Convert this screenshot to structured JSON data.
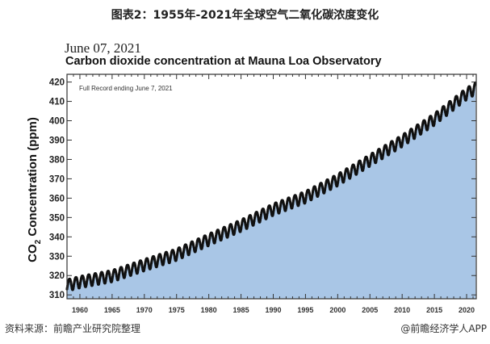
{
  "title": "图表2：1955年-2021年全球空气二氧化碳浓度变化",
  "source": "资料来源：前瞻产业研究院整理",
  "credit": "@前瞻经济学人APP",
  "chart_data": {
    "type": "area",
    "date_label": "June 07, 2021",
    "title": "Carbon dioxide concentration at Mauna Loa Observatory",
    "annotation": "Full Record ending June 7, 2021",
    "ylabel": "CO2 Concentration (ppm)",
    "xlabel": "",
    "xlim": [
      1958,
      2021.5
    ],
    "ylim": [
      308,
      424
    ],
    "yticks": [
      310,
      320,
      330,
      340,
      350,
      360,
      370,
      380,
      390,
      400,
      410,
      420
    ],
    "xticks": [
      1960,
      1965,
      1970,
      1975,
      1980,
      1985,
      1990,
      1995,
      2000,
      2005,
      2010,
      2015,
      2020
    ],
    "fill_color": "#a9c6e6",
    "marker_color": "#111111",
    "series": [
      {
        "x": [
          1958,
          1960,
          1965,
          1970,
          1975,
          1980,
          1985,
          1990,
          1995,
          2000,
          2005,
          2010,
          2015,
          2020,
          2021.4
        ],
        "y": [
          315.2,
          316.9,
          320.0,
          325.7,
          331.1,
          338.8,
          346.1,
          354.4,
          360.8,
          369.7,
          379.8,
          389.9,
          401.0,
          414.2,
          417.0
        ]
      }
    ]
  }
}
